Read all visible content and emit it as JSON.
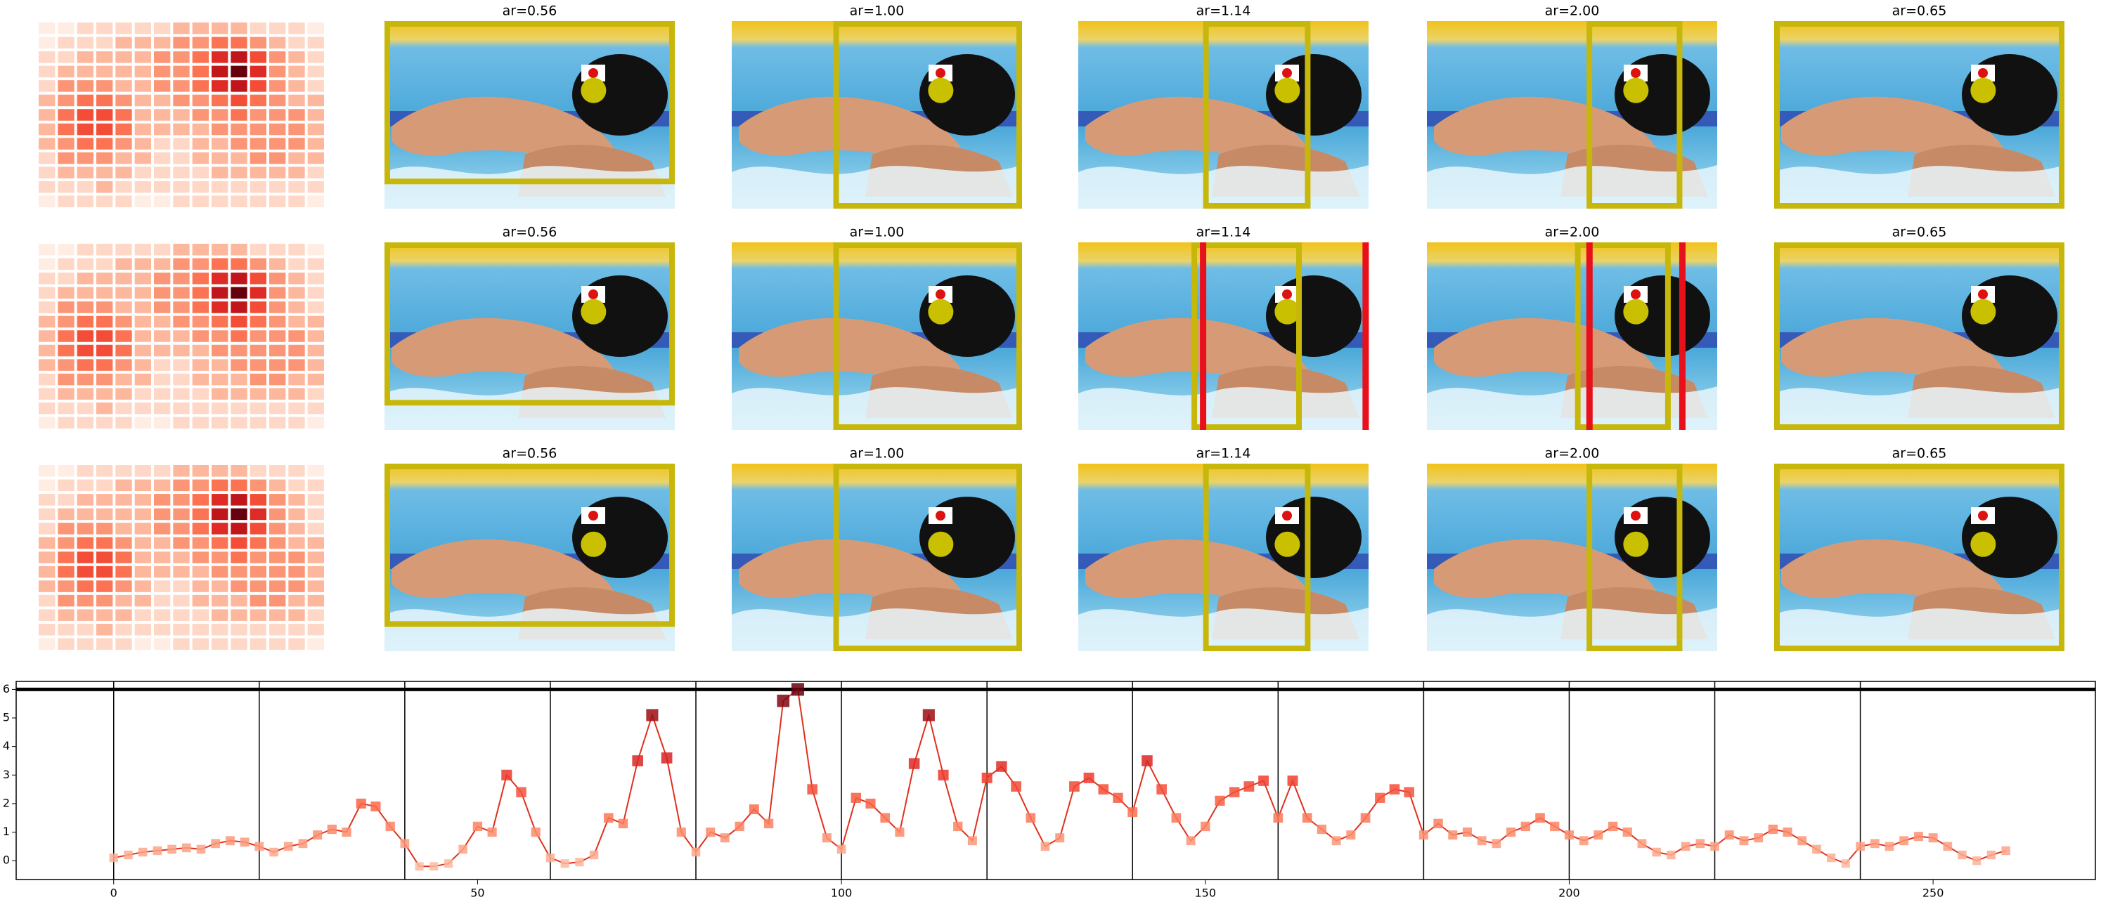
{
  "panels": {
    "titles": [
      [
        "ar=0.56",
        "ar=1.00",
        "ar=1.14",
        "ar=2.00",
        "ar=0.65"
      ],
      [
        "ar=0.56",
        "ar=1.00",
        "ar=1.14",
        "ar=2.00",
        "ar=0.65"
      ],
      [
        "ar=0.56",
        "ar=1.00",
        "ar=1.14",
        "ar=2.00",
        "ar=0.65"
      ]
    ]
  },
  "heatmap": [
    [
      0,
      0,
      1,
      1,
      1,
      1,
      1,
      2,
      2,
      2,
      2,
      1,
      1,
      1,
      0
    ],
    [
      0,
      1,
      1,
      1,
      2,
      2,
      2,
      3,
      3,
      4,
      4,
      3,
      2,
      1,
      1
    ],
    [
      1,
      1,
      2,
      2,
      2,
      2,
      3,
      3,
      4,
      6,
      7,
      5,
      3,
      2,
      1
    ],
    [
      1,
      2,
      2,
      2,
      2,
      2,
      3,
      3,
      4,
      7,
      9,
      6,
      3,
      2,
      1
    ],
    [
      1,
      3,
      3,
      3,
      2,
      2,
      3,
      3,
      4,
      6,
      7,
      5,
      3,
      2,
      1
    ],
    [
      2,
      3,
      4,
      4,
      3,
      2,
      2,
      3,
      3,
      4,
      5,
      4,
      3,
      2,
      2
    ],
    [
      2,
      4,
      5,
      5,
      4,
      2,
      2,
      2,
      3,
      3,
      4,
      3,
      3,
      3,
      2
    ],
    [
      2,
      4,
      5,
      5,
      4,
      2,
      2,
      2,
      2,
      3,
      3,
      3,
      3,
      3,
      2
    ],
    [
      2,
      3,
      4,
      4,
      3,
      2,
      1,
      1,
      2,
      2,
      3,
      3,
      3,
      3,
      2
    ],
    [
      1,
      3,
      3,
      3,
      2,
      2,
      1,
      1,
      2,
      2,
      2,
      3,
      3,
      2,
      2
    ],
    [
      1,
      2,
      2,
      2,
      2,
      1,
      1,
      1,
      1,
      2,
      2,
      2,
      2,
      2,
      1
    ],
    [
      1,
      1,
      1,
      2,
      1,
      1,
      1,
      1,
      1,
      1,
      1,
      1,
      1,
      1,
      1
    ],
    [
      0,
      1,
      1,
      1,
      1,
      0,
      0,
      1,
      1,
      1,
      1,
      1,
      1,
      1,
      0
    ]
  ],
  "chart_data": {
    "type": "line",
    "color": "#e0301e",
    "x": [
      0,
      2,
      4,
      6,
      8,
      10,
      12,
      14,
      16,
      18,
      20,
      22,
      24,
      26,
      28,
      30,
      32,
      34,
      36,
      38,
      40,
      42,
      44,
      46,
      48,
      50,
      52,
      54,
      56,
      58,
      60,
      62,
      64,
      66,
      68,
      70,
      72,
      74,
      76,
      78,
      80,
      82,
      84,
      86,
      88,
      90,
      92,
      94,
      96,
      98,
      100,
      102,
      104,
      106,
      108,
      110,
      112,
      114,
      116,
      118,
      120,
      122,
      124,
      126,
      128,
      130,
      132,
      134,
      136,
      138,
      140,
      142,
      144,
      146,
      148,
      150,
      152,
      154,
      156,
      158,
      160,
      162,
      164,
      166,
      168,
      170,
      172,
      174,
      176,
      178,
      180,
      182,
      184,
      186,
      188,
      190,
      192,
      194,
      196,
      198,
      200,
      202,
      204,
      206,
      208,
      210,
      212,
      214,
      216,
      218,
      220,
      222,
      224,
      226,
      228,
      230,
      232,
      234,
      236,
      238,
      240,
      242,
      244,
      246,
      248,
      250,
      252,
      254,
      256,
      258,
      260
    ],
    "values": [
      0.1,
      0.2,
      0.3,
      0.35,
      0.4,
      0.45,
      0.4,
      0.6,
      0.7,
      0.65,
      0.5,
      0.3,
      0.5,
      0.6,
      0.9,
      1.1,
      1.0,
      2.0,
      1.9,
      1.2,
      0.6,
      -0.2,
      -0.2,
      -0.1,
      0.4,
      1.2,
      1.0,
      3.0,
      2.4,
      1.0,
      0.1,
      -0.1,
      -0.05,
      0.2,
      1.5,
      1.3,
      3.5,
      5.1,
      3.6,
      1.0,
      0.3,
      1.0,
      0.8,
      1.2,
      1.8,
      1.3,
      5.6,
      6.0,
      2.5,
      0.8,
      0.4,
      2.2,
      2.0,
      1.5,
      1.0,
      3.4,
      5.1,
      3.0,
      1.2,
      0.7,
      2.9,
      3.3,
      2.6,
      1.5,
      0.5,
      0.8,
      2.6,
      2.9,
      2.5,
      2.2,
      1.7,
      3.5,
      2.5,
      1.5,
      0.7,
      1.2,
      2.1,
      2.4,
      2.6,
      2.8,
      1.5,
      2.8,
      1.5,
      1.1,
      0.7,
      0.9,
      1.5,
      2.2,
      2.5,
      2.4,
      0.9,
      1.3,
      0.9,
      1.0,
      0.7,
      0.6,
      1.0,
      1.2,
      1.5,
      1.2,
      0.9,
      0.7,
      0.9,
      1.2,
      1.0,
      0.6,
      0.3,
      0.2,
      0.5,
      0.6,
      0.5,
      0.9,
      0.7,
      0.8,
      1.1,
      1.0,
      0.7,
      0.4,
      0.1,
      -0.1,
      0.5,
      0.6,
      0.5,
      0.7,
      0.85,
      0.8,
      0.5,
      0.2,
      0.0,
      0.2,
      0.35
    ],
    "xlim": [
      -13.4,
      272.3
    ],
    "ylim": [
      -0.66,
      6.28
    ],
    "xticks": [
      0,
      50,
      100,
      150,
      200,
      250
    ],
    "yticks": [
      0,
      1,
      2,
      3,
      4,
      5,
      6
    ],
    "vlines": [
      0,
      20,
      40,
      60,
      80,
      100,
      120,
      140,
      160,
      180,
      200,
      220,
      240
    ],
    "hline": 6
  }
}
